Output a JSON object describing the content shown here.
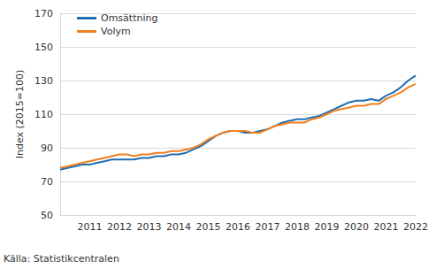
{
  "chart_data": {
    "type": "line",
    "y_label": "Index (2015=100)",
    "source": "Källa: Statistikcentralen",
    "categories": [
      null,
      null,
      null,
      null,
      "2011",
      null,
      null,
      null,
      "2012",
      null,
      null,
      null,
      "2013",
      null,
      null,
      null,
      "2014",
      null,
      null,
      null,
      "2015",
      null,
      null,
      null,
      "2016",
      null,
      null,
      null,
      "2017",
      null,
      null,
      null,
      "2018",
      null,
      null,
      null,
      "2019",
      null,
      null,
      null,
      "2020",
      null,
      null,
      null,
      "2021",
      null,
      null,
      null,
      "2022"
    ],
    "series": [
      {
        "name": "Omsättning",
        "color": "#1f6fb2",
        "values": [
          77,
          78,
          79,
          80,
          80,
          81,
          82,
          83,
          83,
          83,
          83,
          84,
          84,
          85,
          85,
          86,
          86,
          87,
          89,
          91,
          94,
          97,
          99,
          100,
          100,
          99,
          99,
          100,
          101,
          103,
          105,
          106,
          107,
          107,
          108,
          109,
          111,
          113,
          115,
          117,
          118,
          118,
          119,
          118,
          121,
          123,
          126,
          130,
          133
        ]
      },
      {
        "name": "Volym",
        "color": "#f07f1e",
        "values": [
          78,
          79,
          80,
          81,
          82,
          83,
          84,
          85,
          86,
          86,
          85,
          86,
          86,
          87,
          87,
          88,
          88,
          89,
          90,
          92,
          95,
          97,
          99,
          100,
          100,
          100,
          99,
          99,
          101,
          103,
          104,
          105,
          105,
          105,
          107,
          108,
          110,
          112,
          113,
          114,
          115,
          115,
          116,
          116,
          119,
          121,
          123,
          126,
          128
        ]
      }
    ],
    "ylim": [
      50,
      170
    ],
    "yticks": [
      50,
      70,
      90,
      110,
      130,
      150,
      170
    ],
    "grid": true,
    "legend": "top-left"
  }
}
